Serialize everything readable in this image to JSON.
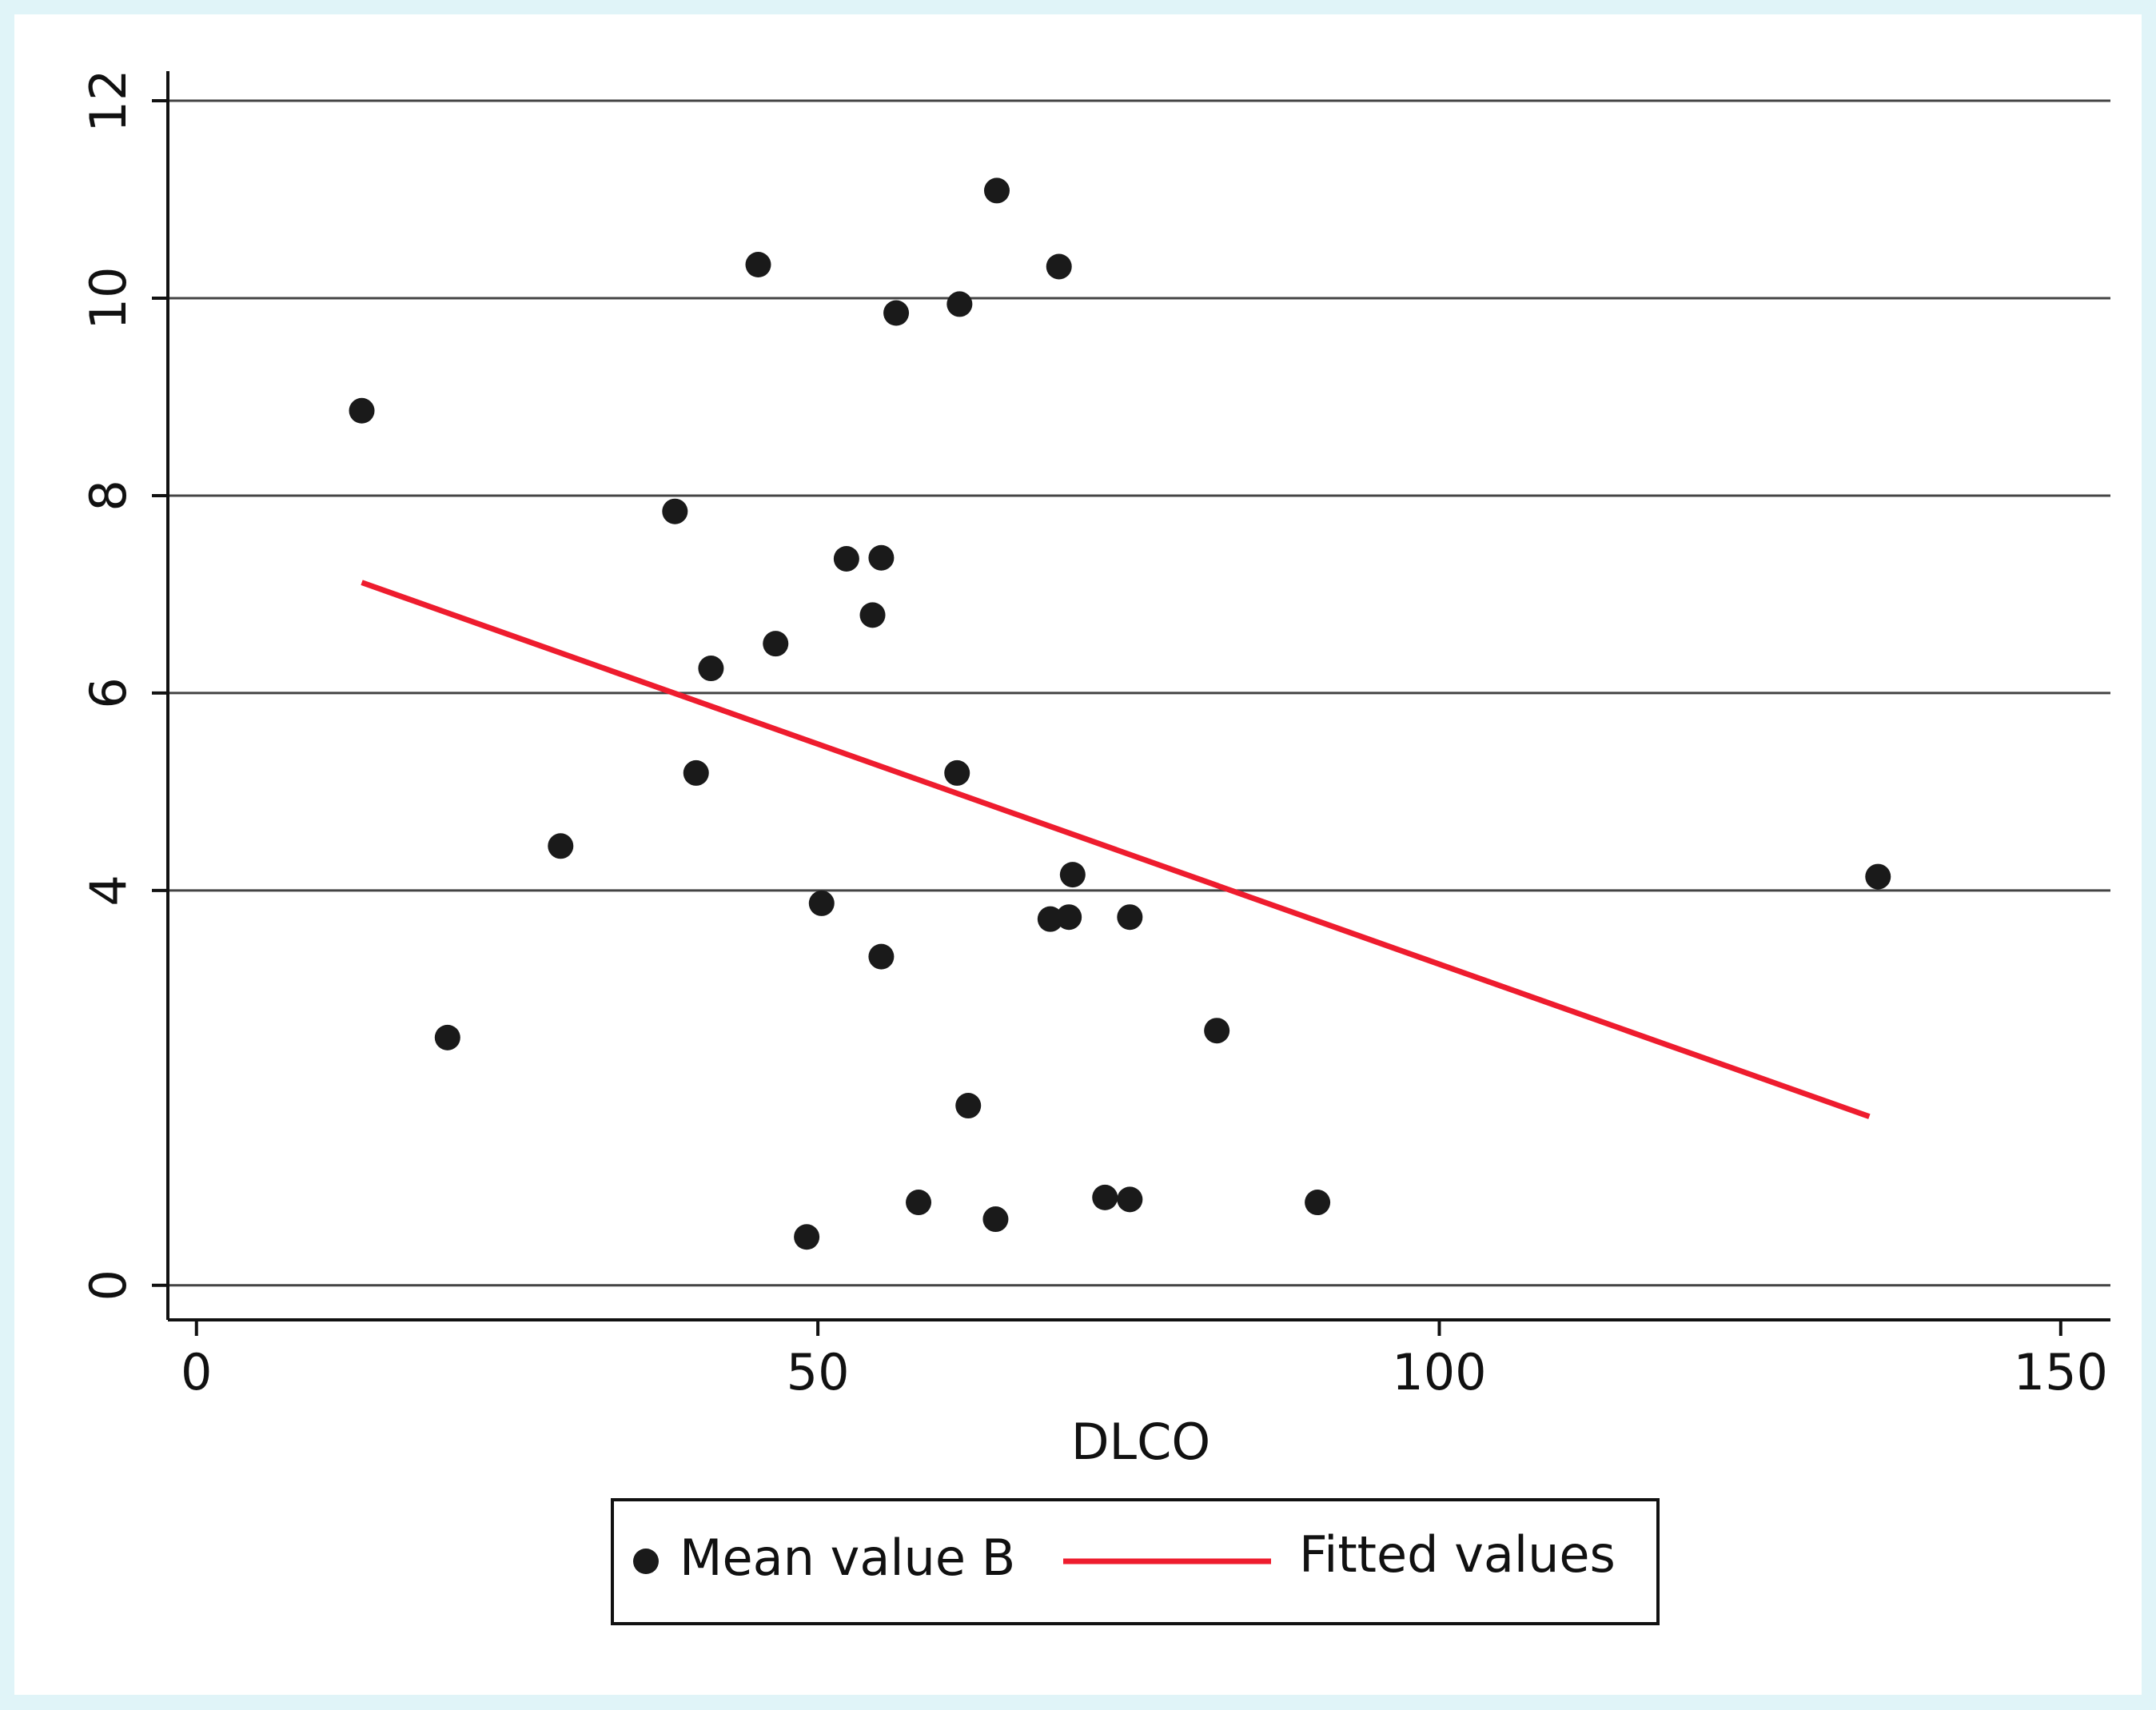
{
  "chart_data": {
    "type": "scatter",
    "x_label": "DLCO",
    "xlim": [
      -2.3,
      154
    ],
    "xticks": [
      0,
      50,
      100,
      150
    ],
    "ylim": [
      -0.35,
      12.3
    ],
    "yticks": [
      0,
      4,
      6,
      8,
      10,
      12
    ],
    "grid": true,
    "series": [
      {
        "name": "Mean value B",
        "color": "#1a1a1a",
        "x": [
          13.3,
          20.2,
          29.3,
          38.5,
          40.2,
          41.4,
          45.2,
          46.6,
          49.1,
          50.3,
          52.3,
          54.4,
          55.1,
          55.1,
          56.3,
          58.1,
          61.2,
          61.4,
          62.1,
          64.3,
          64.4,
          68.7,
          69.4,
          70.2,
          70.5,
          73.1,
          75.1,
          75.1,
          82.1,
          90.2,
          135.3
        ],
        "values": [
          8.86,
          2.51,
          4.45,
          7.84,
          5.19,
          6.25,
          10.34,
          6.5,
          0.49,
          3.87,
          7.36,
          6.79,
          7.37,
          3.33,
          9.85,
          0.84,
          5.19,
          9.94,
          1.82,
          0.67,
          11.09,
          3.71,
          10.32,
          3.73,
          4.16,
          0.89,
          0.87,
          3.73,
          2.58,
          0.84,
          4.14
        ]
      },
      {
        "name": "Fitted values",
        "color": "#ee1c2e",
        "type": "line",
        "x": [
          13.3,
          134.6
        ],
        "values": [
          7.12,
          1.71
        ]
      }
    ]
  }
}
